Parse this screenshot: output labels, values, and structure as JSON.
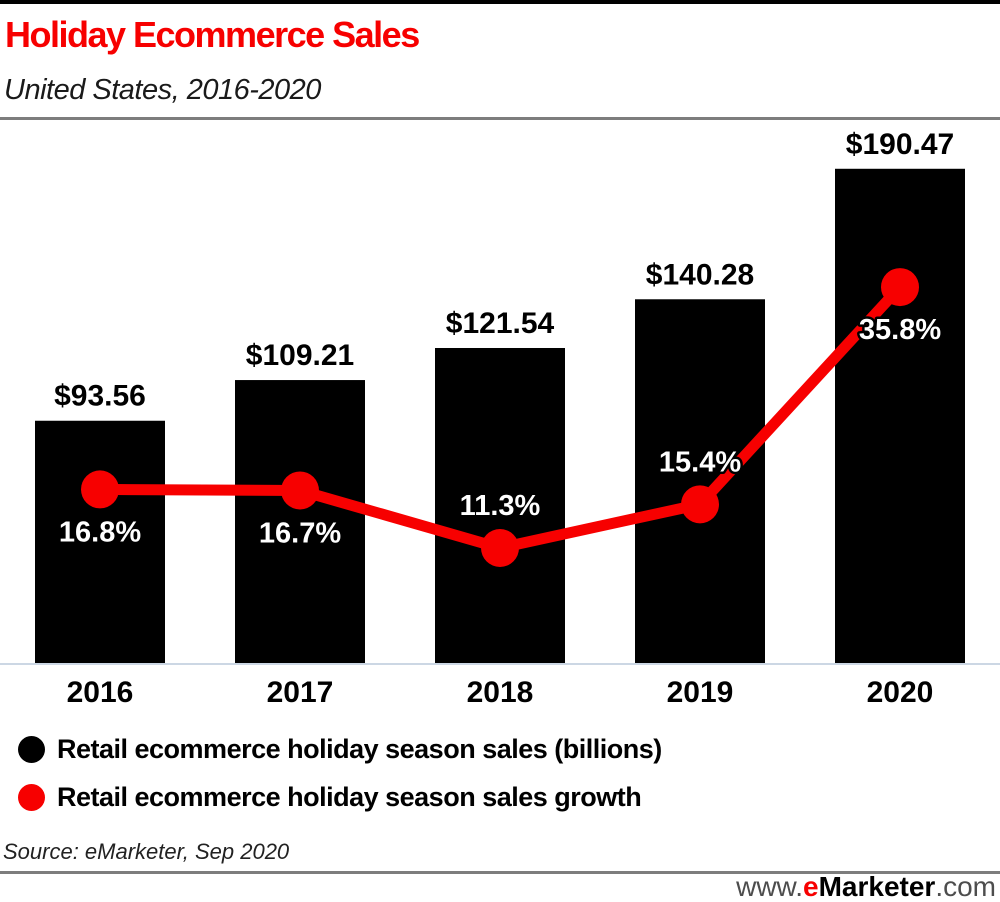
{
  "header": {
    "title": "Holiday Ecommerce Sales",
    "subtitle": "United States, 2016-2020"
  },
  "chart_data": {
    "type": "combo-bar-line",
    "categories": [
      "2016",
      "2017",
      "2018",
      "2019",
      "2020"
    ],
    "series": [
      {
        "name": "Retail ecommerce holiday season sales (billions)",
        "type": "bar",
        "color": "#000000",
        "values": [
          93.56,
          109.21,
          121.54,
          140.28,
          190.47
        ],
        "labels": [
          "$93.56",
          "$109.21",
          "$121.54",
          "$140.28",
          "$190.47"
        ]
      },
      {
        "name": "Retail ecommerce holiday season sales growth",
        "type": "line",
        "color": "#f70000",
        "values": [
          16.8,
          16.7,
          11.3,
          15.4,
          35.8
        ],
        "labels": [
          "16.8%",
          "16.7%",
          "11.3%",
          "15.4%",
          "35.8%"
        ],
        "label_positions": [
          "below",
          "below",
          "above",
          "above",
          "below"
        ]
      }
    ],
    "xlabel": "",
    "ylabel": "",
    "grid": false,
    "legend_position": "bottom-left",
    "axis_line_color": "#ccd7e4"
  },
  "legend": {
    "items": [
      {
        "label": "Retail ecommerce holiday season sales (billions)",
        "color": "#000000"
      },
      {
        "label": "Retail ecommerce holiday season sales growth",
        "color": "#f70000"
      }
    ]
  },
  "footer": {
    "source": "Source: eMarketer, Sep 2020",
    "site": {
      "www": "www.",
      "e": "e",
      "marketer": "Marketer",
      "com": ".com"
    }
  },
  "colors": {
    "accent_red": "#f70000",
    "bar_black": "#000000",
    "baseline": "#ccd7e4",
    "divider_gray": "#7d7d7d",
    "pct_label_text": "#ffffff"
  }
}
